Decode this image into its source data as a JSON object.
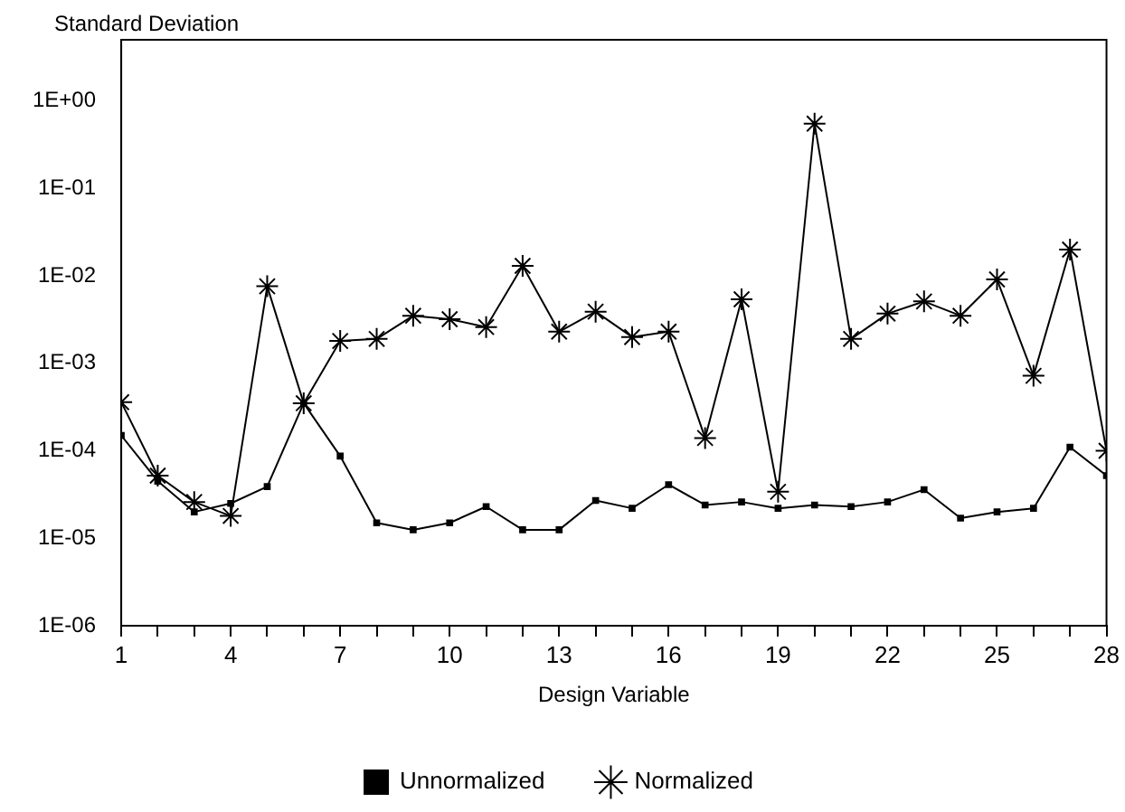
{
  "chart_data": {
    "type": "line",
    "title": "Standard Deviation",
    "xlabel": "Design Variable",
    "x": [
      1,
      2,
      3,
      4,
      5,
      6,
      7,
      8,
      9,
      10,
      11,
      12,
      13,
      14,
      15,
      16,
      17,
      18,
      19,
      20,
      21,
      22,
      23,
      24,
      25,
      26,
      27,
      28
    ],
    "series": [
      {
        "name": "Unnormalized",
        "color": "#000000",
        "marker": "square",
        "values": [
          0.00015,
          4.5e-05,
          2e-05,
          2.5e-05,
          3.9e-05,
          0.00035,
          8.7e-05,
          1.5e-05,
          1.25e-05,
          1.5e-05,
          2.3e-05,
          1.25e-05,
          1.25e-05,
          2.7e-05,
          2.2e-05,
          4.1e-05,
          2.4e-05,
          2.6e-05,
          2.2e-05,
          2.4e-05,
          2.3e-05,
          2.6e-05,
          3.6e-05,
          1.7e-05,
          2e-05,
          2.2e-05,
          0.00011,
          5.2e-05
        ]
      },
      {
        "name": "Normalized",
        "color": "#000000",
        "marker": "cross",
        "values": [
          0.00036,
          5.2e-05,
          2.6e-05,
          1.8e-05,
          0.0076,
          0.00035,
          0.0018,
          0.0019,
          0.0035,
          0.0032,
          0.0026,
          0.013,
          0.0023,
          0.0039,
          0.002,
          0.0023,
          0.00014,
          0.0054,
          3.4e-05,
          0.55,
          0.0019,
          0.0037,
          0.0051,
          0.0035,
          0.0091,
          0.00072,
          0.02,
          0.0001
        ]
      }
    ],
    "log": "y",
    "ylim": [
      1e-06,
      5
    ],
    "yticks": [
      {
        "value": 1e-06,
        "label": "1E-06"
      },
      {
        "value": 1e-05,
        "label": "1E-05"
      },
      {
        "value": 0.0001,
        "label": "1E-04"
      },
      {
        "value": 0.001,
        "label": "1E-03"
      },
      {
        "value": 0.01,
        "label": "1E-02"
      },
      {
        "value": 0.1,
        "label": "1E-01"
      },
      {
        "value": 1,
        "label": "1E+00"
      }
    ],
    "xlim": [
      1,
      28
    ],
    "xticks": [
      1,
      {
        "value": 2,
        "label": null
      },
      {
        "value": 3,
        "label": null
      },
      4,
      {
        "value": 5,
        "label": null
      },
      {
        "value": 6,
        "label": null
      },
      7,
      {
        "value": 8,
        "label": null
      },
      {
        "value": 9,
        "label": null
      },
      10,
      {
        "value": 11,
        "label": null
      },
      {
        "value": 12,
        "label": null
      },
      13,
      {
        "value": 14,
        "label": null
      },
      {
        "value": 15,
        "label": null
      },
      16,
      {
        "value": 17,
        "label": null
      },
      {
        "value": 18,
        "label": null
      },
      19,
      {
        "value": 20,
        "label": null
      },
      {
        "value": 21,
        "label": null
      },
      22,
      {
        "value": 23,
        "label": null
      },
      {
        "value": 24,
        "label": null
      },
      25,
      {
        "value": 26,
        "label": null
      },
      {
        "value": 27,
        "label": null
      },
      28
    ],
    "grid": false,
    "legend": "bottom",
    "line_style": "solid"
  }
}
